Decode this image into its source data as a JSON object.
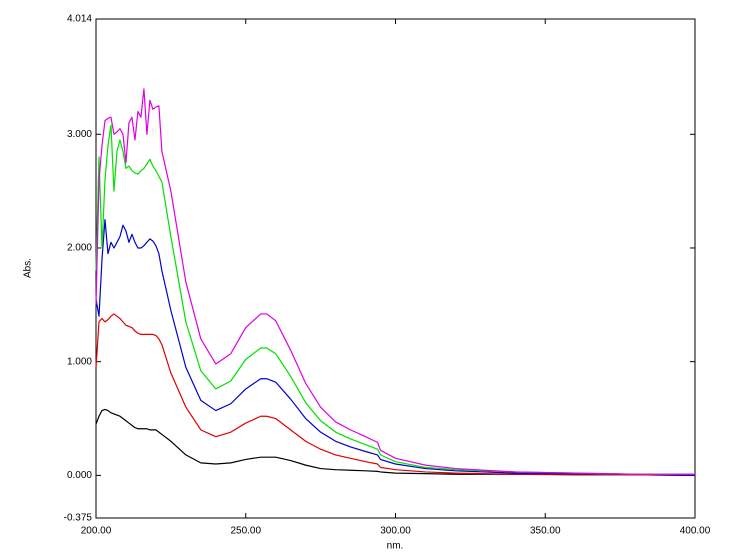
{
  "chart_data": {
    "type": "line",
    "x_label": "nm.",
    "y_label": "Abs.",
    "x": [
      200,
      201,
      202,
      203,
      204,
      205,
      206,
      207,
      208,
      209,
      210,
      211,
      212,
      213,
      214,
      215,
      216,
      217,
      218,
      219,
      220,
      221,
      222,
      225,
      230,
      235,
      240,
      245,
      250,
      255,
      257,
      260,
      265,
      270,
      275,
      280,
      285,
      290,
      294,
      295,
      300,
      310,
      320,
      340,
      360,
      380,
      400
    ],
    "series": [
      {
        "color": "#000000",
        "values": [
          0.45,
          0.52,
          0.57,
          0.58,
          0.57,
          0.55,
          0.54,
          0.53,
          0.52,
          0.5,
          0.48,
          0.46,
          0.44,
          0.42,
          0.41,
          0.41,
          0.41,
          0.41,
          0.4,
          0.4,
          0.4,
          0.38,
          0.36,
          0.3,
          0.18,
          0.11,
          0.1,
          0.11,
          0.14,
          0.16,
          0.16,
          0.16,
          0.13,
          0.09,
          0.06,
          0.05,
          0.045,
          0.04,
          0.035,
          0.03,
          0.02,
          0.015,
          0.01,
          0.01,
          0.005,
          0.005,
          0
        ]
      },
      {
        "color": "#e00000",
        "values": [
          0.95,
          1.35,
          1.38,
          1.35,
          1.37,
          1.4,
          1.42,
          1.4,
          1.38,
          1.35,
          1.32,
          1.31,
          1.3,
          1.27,
          1.25,
          1.24,
          1.24,
          1.24,
          1.24,
          1.24,
          1.23,
          1.2,
          1.15,
          0.9,
          0.6,
          0.4,
          0.34,
          0.38,
          0.46,
          0.52,
          0.52,
          0.5,
          0.4,
          0.3,
          0.23,
          0.18,
          0.15,
          0.12,
          0.1,
          0.07,
          0.05,
          0.03,
          0.02,
          0.01,
          0.01,
          0.005,
          0
        ]
      },
      {
        "color": "#0000d0",
        "values": [
          1.55,
          1.4,
          1.9,
          2.25,
          1.95,
          2.05,
          2.0,
          2.05,
          2.1,
          2.2,
          2.15,
          2.05,
          2.12,
          2.05,
          2.0,
          2.0,
          2.02,
          2.05,
          2.08,
          2.06,
          2.02,
          1.95,
          1.8,
          1.45,
          0.95,
          0.66,
          0.57,
          0.63,
          0.76,
          0.85,
          0.85,
          0.82,
          0.67,
          0.5,
          0.38,
          0.3,
          0.25,
          0.21,
          0.18,
          0.14,
          0.1,
          0.06,
          0.04,
          0.02,
          0.015,
          0.01,
          0
        ]
      },
      {
        "color": "#00e000",
        "values": [
          1.8,
          2.8,
          2.0,
          2.6,
          2.9,
          3.08,
          2.5,
          2.85,
          2.95,
          2.85,
          2.7,
          2.72,
          2.68,
          2.66,
          2.65,
          2.68,
          2.7,
          2.74,
          2.78,
          2.72,
          2.68,
          2.63,
          2.58,
          2.1,
          1.35,
          0.92,
          0.76,
          0.83,
          1.02,
          1.12,
          1.12,
          1.07,
          0.87,
          0.64,
          0.48,
          0.38,
          0.32,
          0.27,
          0.23,
          0.18,
          0.12,
          0.07,
          0.05,
          0.03,
          0.02,
          0.01,
          0.01
        ]
      },
      {
        "color": "#e000e0",
        "values": [
          1.5,
          2.6,
          2.9,
          3.12,
          3.14,
          3.15,
          3.0,
          3.02,
          3.05,
          3.0,
          2.75,
          3.1,
          3.15,
          2.95,
          3.2,
          3.15,
          3.4,
          3.0,
          3.3,
          3.22,
          3.24,
          3.25,
          2.85,
          2.5,
          1.7,
          1.2,
          0.98,
          1.07,
          1.3,
          1.42,
          1.42,
          1.36,
          1.1,
          0.81,
          0.6,
          0.47,
          0.4,
          0.34,
          0.29,
          0.22,
          0.15,
          0.09,
          0.06,
          0.03,
          0.02,
          0.01,
          0.01
        ]
      }
    ],
    "xlim": [
      200,
      400
    ],
    "xticks": [
      {
        "value": 200,
        "label": "200.00"
      },
      {
        "value": 250,
        "label": "250.00"
      },
      {
        "value": 300,
        "label": "300.00"
      },
      {
        "value": 350,
        "label": "350.00"
      },
      {
        "value": 400,
        "label": "400.00"
      }
    ],
    "ylim": [
      -0.375,
      4.014
    ],
    "yticks": [
      {
        "value": -0.375,
        "label": "-0.375"
      },
      {
        "value": 0,
        "label": "0.000"
      },
      {
        "value": 1,
        "label": "1.000"
      },
      {
        "value": 2,
        "label": "2.000"
      },
      {
        "value": 3,
        "label": "3.000"
      },
      {
        "value": 4.014,
        "label": "4.014"
      }
    ]
  }
}
